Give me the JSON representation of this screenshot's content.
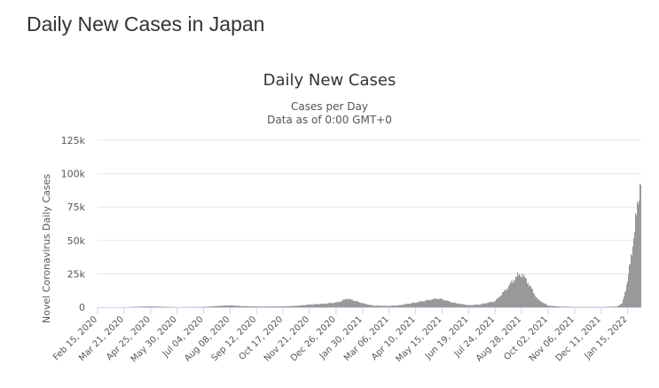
{
  "page": {
    "heading": "Daily New Cases in Japan"
  },
  "chart_data": {
    "type": "bar",
    "title": "Daily New Cases",
    "subtitle_lines": [
      "Cases per Day",
      "Data as of 0:00 GMT+0"
    ],
    "ylabel": "Novel Coronavirus Daily Cases",
    "xlabel": "",
    "ylim": [
      0,
      125000
    ],
    "y_ticks": [
      0,
      25000,
      50000,
      75000,
      100000,
      125000
    ],
    "y_tick_labels": [
      "0",
      "25k",
      "50k",
      "75k",
      "100k",
      "125k"
    ],
    "x_tick_labels": [
      "Feb 15, 2020",
      "Mar 21, 2020",
      "Apr 25, 2020",
      "May 30, 2020",
      "Jul 04, 2020",
      "Aug 08, 2020",
      "Sep 12, 2020",
      "Oct 17, 2020",
      "Nov 21, 2020",
      "Dec 26, 2020",
      "Jan 30, 2021",
      "Mar 06, 2021",
      "Apr 10, 2021",
      "May 15, 2021",
      "Jun 19, 2021",
      "Jul 24, 2021",
      "Aug 28, 2021",
      "Oct 02, 2021",
      "Nov 06, 2021",
      "Dec 11, 2021",
      "Jan 15, 2022"
    ],
    "x_range": [
      "Feb 15, 2020",
      "Feb 02, 2022"
    ],
    "grid": true,
    "bar_color": "#999999",
    "series": [
      {
        "x": [
          "Feb 15, 2020",
          "Mar 21, 2020",
          "Apr 11, 2020",
          "Apr 25, 2020",
          "May 30, 2020",
          "Jul 04, 2020",
          "Jul 18, 2020",
          "Aug 01, 2020",
          "Aug 08, 2020",
          "Aug 22, 2020",
          "Sep 12, 2020",
          "Oct 17, 2020",
          "Nov 07, 2020",
          "Nov 21, 2020",
          "Dec 05, 2020",
          "Dec 26, 2020",
          "Jan 02, 2021",
          "Jan 09, 2021",
          "Jan 16, 2021",
          "Jan 30, 2021",
          "Feb 13, 2021",
          "Mar 06, 2021",
          "Mar 20, 2021",
          "Apr 10, 2021",
          "Apr 24, 2021",
          "May 08, 2021",
          "May 15, 2021",
          "May 29, 2021",
          "Jun 19, 2021",
          "Jul 03, 2021",
          "Jul 24, 2021",
          "Aug 07, 2021",
          "Aug 21, 2021",
          "Aug 28, 2021",
          "Sep 04, 2021",
          "Sep 18, 2021",
          "Oct 02, 2021",
          "Oct 16, 2021",
          "Nov 06, 2021",
          "Dec 11, 2021",
          "Jan 01, 2022",
          "Jan 08, 2022",
          "Jan 15, 2022",
          "Jan 22, 2022",
          "Jan 29, 2022",
          "Feb 02, 2022"
        ],
        "values": [
          0,
          0,
          400,
          600,
          50,
          250,
          700,
          1300,
          1400,
          900,
          500,
          600,
          1200,
          2000,
          2400,
          3500,
          4500,
          6500,
          5500,
          3000,
          1200,
          1000,
          1500,
          3500,
          5000,
          6500,
          6000,
          3500,
          1500,
          2000,
          4500,
          13000,
          23000,
          25000,
          20000,
          6000,
          1200,
          500,
          200,
          150,
          500,
          3000,
          20000,
          48000,
          80000,
          104000
        ]
      }
    ]
  }
}
